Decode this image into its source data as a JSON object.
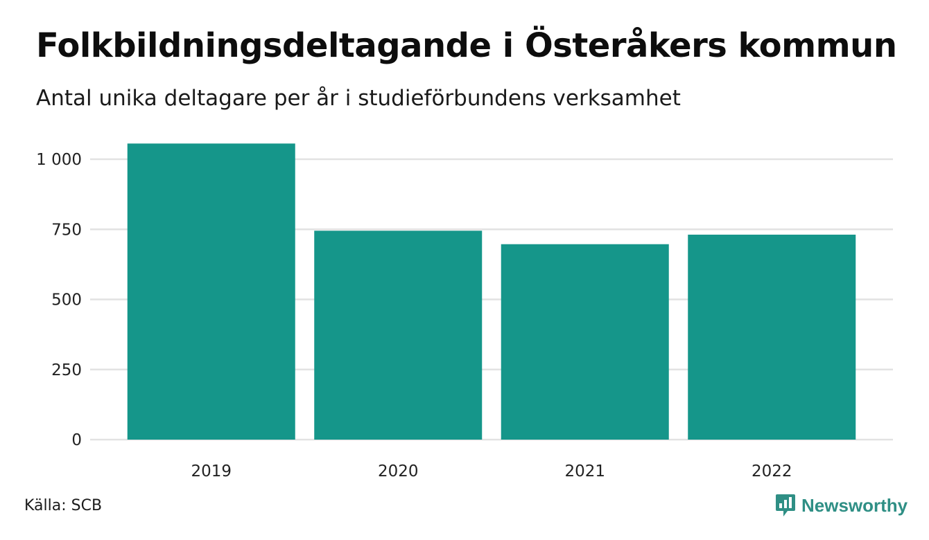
{
  "source": "Källa: SCB",
  "brand": {
    "name": "Newsworthy",
    "icon": "newsworthy-logo-icon"
  },
  "colors": {
    "bar": "#15968a",
    "grid": "#e2e2e2",
    "brand": "#2f8f85"
  },
  "chart_data": {
    "type": "bar",
    "title": "Folkbildningsdeltagande i Österåkers kommun",
    "subtitle": "Antal unika deltagare per år i studieförbundens verksamhet",
    "categories": [
      "2019",
      "2020",
      "2021",
      "2022"
    ],
    "values": [
      1056,
      745,
      697,
      731
    ],
    "ylim": [
      0,
      1000
    ],
    "yticks": [
      0,
      250,
      500,
      750,
      1000
    ],
    "ytick_labels": [
      "0",
      "250",
      "500",
      "750",
      "1 000"
    ],
    "xlabel": "",
    "ylabel": "",
    "grid": true
  }
}
